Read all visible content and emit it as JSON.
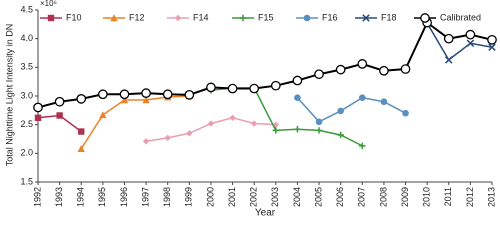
{
  "chart_data": {
    "type": "line",
    "x_label": "Year",
    "y_label": "Total Nighttime Light Intensity in DN",
    "y_multiplier": "×10⁶",
    "xlim": [
      1992,
      2013
    ],
    "xticks": [
      1992,
      1993,
      1994,
      1995,
      1996,
      1997,
      1998,
      1999,
      2000,
      2001,
      2002,
      2003,
      2004,
      2005,
      2006,
      2007,
      2008,
      2009,
      2010,
      2011,
      2012,
      2013
    ],
    "ylim": [
      1.5,
      4.5
    ],
    "yticks": [
      {
        "value": 1.5,
        "label": "1.5"
      },
      {
        "value": 2,
        "label": "2.0"
      },
      {
        "value": 2.5,
        "label": "2.5"
      },
      {
        "value": 3,
        "label": "3.0"
      },
      {
        "value": 3.5,
        "label": "3.5"
      },
      {
        "value": 4,
        "label": "4.0"
      },
      {
        "value": 4.5,
        "label": "4.5"
      }
    ],
    "grid": false,
    "legend": "top",
    "series": [
      {
        "name": "F10",
        "color": "#b03050",
        "marker": "square",
        "x": [
          1992,
          1993,
          1994
        ],
        "values": [
          2.62,
          2.66,
          2.38
        ]
      },
      {
        "name": "F12",
        "color": "#e8832a",
        "marker": "triangle",
        "x": [
          1994,
          1995,
          1996,
          1997,
          1998,
          1999
        ],
        "values": [
          2.08,
          2.67,
          2.93,
          2.93,
          2.98,
          3.0
        ]
      },
      {
        "name": "F14",
        "color": "#e8a0b0",
        "marker": "diamond",
        "x": [
          1997,
          1998,
          1999,
          2000,
          2001,
          2002,
          2003
        ],
        "values": [
          2.21,
          2.27,
          2.35,
          2.52,
          2.62,
          2.52,
          2.5
        ]
      },
      {
        "name": "F15",
        "color": "#3a9a3a",
        "marker": "plus",
        "x": [
          2000,
          2001,
          2002,
          2003,
          2004,
          2005,
          2006,
          2007
        ],
        "values": [
          3.1,
          3.14,
          3.14,
          2.4,
          2.42,
          2.4,
          2.32,
          2.13
        ]
      },
      {
        "name": "F16",
        "color": "#5b8fc0",
        "marker": "circle",
        "x": [
          2004,
          2005,
          2006,
          2007,
          2008,
          2009
        ],
        "values": [
          2.97,
          2.55,
          2.74,
          2.97,
          2.9,
          2.7
        ]
      },
      {
        "name": "F18",
        "color": "#2a4a7a",
        "marker": "x",
        "x": [
          2010,
          2011,
          2012,
          2013
        ],
        "values": [
          4.27,
          3.63,
          3.92,
          3.85
        ]
      },
      {
        "name": "Calibrated",
        "color": "#000000",
        "marker": "open-circle",
        "x": [
          1992,
          1993,
          1994,
          1995,
          1996,
          1997,
          1998,
          1999,
          2000,
          2001,
          2002,
          2003,
          2004,
          2005,
          2006,
          2007,
          2008,
          2009,
          2010,
          2011,
          2012,
          2013
        ],
        "values": [
          2.8,
          2.9,
          2.95,
          3.03,
          3.03,
          3.05,
          3.03,
          3.02,
          3.15,
          3.13,
          3.13,
          3.18,
          3.27,
          3.38,
          3.46,
          3.56,
          3.44,
          3.47,
          4.28,
          4.0,
          4.07,
          3.98
        ]
      }
    ]
  }
}
